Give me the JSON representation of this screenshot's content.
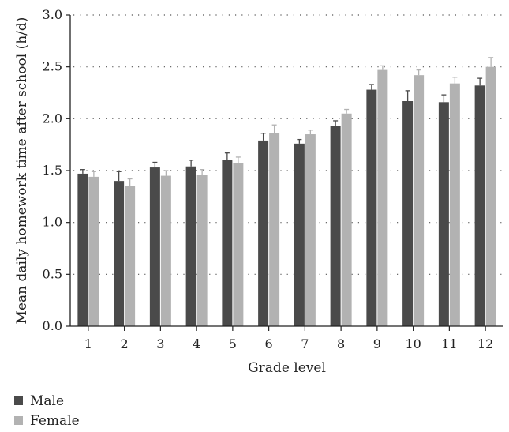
{
  "chart_data": {
    "type": "bar",
    "title": "",
    "xlabel": "Grade level",
    "ylabel": "Mean daily homework time after school (h/d)",
    "ylim": [
      0.0,
      3.0
    ],
    "yticks": [
      "0.0",
      "0.5",
      "1.0",
      "1.5",
      "2.0",
      "2.5",
      "3.0"
    ],
    "categories": [
      "1",
      "2",
      "3",
      "4",
      "5",
      "6",
      "7",
      "8",
      "9",
      "10",
      "11",
      "12"
    ],
    "grid": "horizontal dotted",
    "legend_position": "bottom-left",
    "error_bars": "upper only",
    "series": [
      {
        "name": "Male",
        "color": "#4a4a4a",
        "values": [
          1.47,
          1.4,
          1.53,
          1.54,
          1.6,
          1.79,
          1.76,
          1.93,
          2.28,
          2.17,
          2.16,
          2.32
        ],
        "errors": [
          0.04,
          0.09,
          0.05,
          0.06,
          0.07,
          0.07,
          0.04,
          0.05,
          0.05,
          0.1,
          0.07,
          0.07
        ]
      },
      {
        "name": "Female",
        "color": "#b2b2b2",
        "values": [
          1.44,
          1.35,
          1.45,
          1.46,
          1.57,
          1.86,
          1.85,
          2.05,
          2.47,
          2.42,
          2.34,
          2.5
        ],
        "errors": [
          0.05,
          0.07,
          0.05,
          0.05,
          0.06,
          0.08,
          0.04,
          0.04,
          0.04,
          0.05,
          0.06,
          0.09
        ]
      }
    ]
  }
}
